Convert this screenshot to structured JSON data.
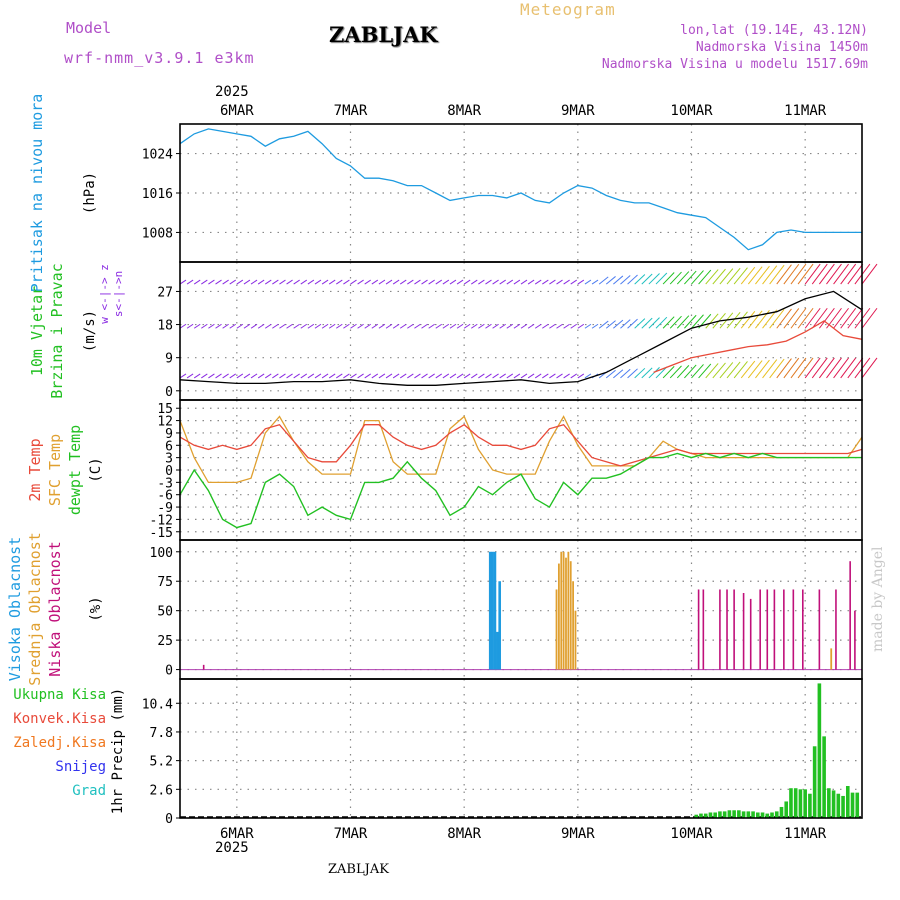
{
  "header": {
    "model_label": "Model",
    "model_name": "wrf-nmm_v3.9.1 e3km",
    "station": "ZABLJAK",
    "product": "Meteogram",
    "coords": "lon,lat (19.14E, 43.12N)",
    "elevation": "Nadmorska Visina 1450m",
    "model_elevation": "Nadmorska Visina u modelu 1517.69m",
    "year": "2025",
    "footer_station": "ZABLJAK",
    "credit": "made by Angel"
  },
  "colors": {
    "pressure": "#1e9be0",
    "wind_green": "#22c022",
    "wind_purple": "#8a2be2",
    "temp2m": "#e84a3a",
    "sfc": "#e0a030",
    "dew": "#22c022",
    "cloud_high": "#1e9be0",
    "cloud_mid": "#e0a030",
    "cloud_low": "#c0107a",
    "precip_total": "#22c022",
    "precip_conv": "#e84a3a",
    "precip_frz": "#f07820",
    "precip_snow": "#3333ee",
    "precip_grad": "#20c0c0",
    "grid": "#888888"
  },
  "chart_data": [
    {
      "type": "line",
      "panel": "pressure",
      "ylabel_a": "Pritisak na nivou mora",
      "ylabel_unit": "(hPa)",
      "yticks": [
        1008,
        1016,
        1024
      ],
      "ylim": [
        1002,
        1030
      ],
      "x": [
        0,
        3,
        6,
        9,
        12,
        15,
        18,
        21,
        24,
        27,
        30,
        33,
        36,
        39,
        42,
        45,
        48,
        51,
        54,
        57,
        60,
        63,
        66,
        69,
        72,
        75,
        78,
        81,
        84,
        87,
        90,
        93,
        96,
        99,
        102,
        105,
        108,
        111,
        114,
        117,
        120,
        123,
        126,
        129,
        132,
        135,
        138,
        141,
        144
      ],
      "values": [
        1026.0,
        1028.0,
        1029.0,
        1028.5,
        1028.0,
        1027.5,
        1025.5,
        1027.0,
        1027.5,
        1028.5,
        1026.0,
        1023.0,
        1021.5,
        1019.0,
        1019.0,
        1018.5,
        1017.5,
        1017.5,
        1016.0,
        1014.5,
        1015.0,
        1015.5,
        1015.5,
        1015.0,
        1016.0,
        1014.5,
        1014.0,
        1016.0,
        1017.5,
        1017.0,
        1015.5,
        1014.5,
        1014.0,
        1014.0,
        1013.0,
        1012.0,
        1011.5,
        1011.0,
        1009.0,
        1007.0,
        1004.5,
        1005.5,
        1008.0,
        1008.5,
        1008.0,
        1008.0,
        1008.0,
        1008.0,
        1008.0
      ]
    },
    {
      "type": "line",
      "panel": "wind",
      "ylabel_a": "10m Vjetar",
      "ylabel_b": "Brzina i Pravac",
      "ylabel_unit": "(m/s)",
      "compass": "w <-|-> z",
      "compass_b": "s<-|->n",
      "yticks": [
        0,
        9,
        18,
        27
      ],
      "ylim": [
        -2.5,
        35
      ],
      "barb_levels": [
        3.5,
        17,
        29
      ],
      "speed_x": [
        0,
        6,
        12,
        18,
        24,
        30,
        36,
        42,
        48,
        54,
        60,
        66,
        72,
        78,
        84,
        90,
        96,
        102,
        108,
        114,
        120,
        126,
        132,
        138,
        144
      ],
      "speed": [
        3.0,
        2.5,
        2.0,
        2.0,
        2.5,
        2.5,
        3.0,
        2.0,
        1.5,
        1.5,
        2.0,
        2.5,
        3.0,
        2.0,
        2.5,
        5.0,
        9.0,
        13.0,
        17.0,
        19.0,
        20.0,
        21.5,
        25.0,
        27.0,
        22.0
      ],
      "gust_x": [
        100,
        104,
        108,
        112,
        116,
        120,
        124,
        128,
        132,
        136,
        140,
        144
      ],
      "gust": [
        5.0,
        7.0,
        9.0,
        10.0,
        11.0,
        12.0,
        12.5,
        13.5,
        16.0,
        19.0,
        15.0,
        14.0
      ]
    },
    {
      "type": "line",
      "panel": "temperature",
      "ylabel_a": "2m Temp",
      "ylabel_b": "SFC Temp",
      "ylabel_c": "dewpt Temp",
      "ylabel_unit": "(C)",
      "yticks": [
        -15,
        -12,
        -9,
        -6,
        -3,
        0,
        3,
        6,
        9,
        12,
        15
      ],
      "ylim": [
        -17,
        17
      ],
      "x": [
        0,
        3,
        6,
        9,
        12,
        15,
        18,
        21,
        24,
        27,
        30,
        33,
        36,
        39,
        42,
        45,
        48,
        51,
        54,
        57,
        60,
        63,
        66,
        69,
        72,
        75,
        78,
        81,
        84,
        87,
        90,
        93,
        96,
        99,
        102,
        105,
        108,
        111,
        114,
        117,
        120,
        123,
        126,
        129,
        132,
        135,
        138,
        141,
        144
      ],
      "temp2m": [
        8,
        6,
        5,
        6,
        5,
        6,
        10,
        11,
        7,
        3,
        2,
        2,
        6,
        11,
        11,
        8,
        6,
        5,
        6,
        9,
        11,
        8,
        6,
        6,
        5,
        6,
        10,
        11,
        7,
        3,
        2,
        1,
        2,
        3,
        4,
        5,
        4,
        4,
        4,
        4,
        4,
        4,
        4,
        4,
        4,
        4,
        4,
        4,
        5
      ],
      "sfc": [
        12,
        3,
        -3,
        -3,
        -3,
        -2,
        9,
        13,
        7,
        2,
        -1,
        -1,
        -1,
        12,
        12,
        2,
        -1,
        -1,
        -1,
        10,
        13,
        5,
        0,
        -1,
        -1,
        -1,
        7,
        13,
        6,
        1,
        1,
        1,
        1,
        3,
        7,
        5,
        4,
        3,
        3,
        3,
        3,
        3,
        3,
        3,
        3,
        3,
        3,
        3,
        8
      ],
      "dew": [
        -6,
        0,
        -5,
        -12,
        -14,
        -13,
        -3,
        -1,
        -4,
        -11,
        -9,
        -11,
        -12,
        -3,
        -3,
        -2,
        2,
        -2,
        -5,
        -11,
        -9,
        -4,
        -6,
        -3,
        -1,
        -7,
        -9,
        -3,
        -6,
        -2,
        -2,
        -1,
        1,
        3,
        3,
        4,
        3,
        4,
        3,
        4,
        3,
        4,
        3,
        3,
        3,
        3,
        3,
        3,
        3
      ]
    },
    {
      "type": "bar",
      "panel": "clouds",
      "ylabel_a": "Visoka Oblacnost",
      "ylabel_b": "Srednja Oblacnost",
      "ylabel_c": "Niska Oblacnost",
      "ylabel_unit": "(%)",
      "yticks": [
        0,
        25,
        50,
        75,
        100
      ],
      "ylim": [
        -8,
        110
      ],
      "series": [
        {
          "name": "Visoka Oblacnost",
          "x": [
            65.5,
            66.0,
            66.5,
            67.0,
            67.5
          ],
          "values": [
            100,
            100,
            100,
            32,
            75
          ]
        },
        {
          "name": "Srednja Oblacnost",
          "x": [
            79.5,
            80.0,
            80.5,
            81.0,
            81.5,
            82.0,
            82.5,
            83.0,
            83.5,
            137.5
          ],
          "values": [
            68,
            90,
            100,
            100,
            95,
            100,
            92,
            75,
            50,
            18
          ]
        },
        {
          "name": "Niska Oblacnost",
          "x": [
            5.0,
            109.5,
            110.5,
            114.0,
            115.5,
            117.0,
            119.0,
            120.5,
            122.5,
            124.0,
            125.5,
            127.5,
            129.5,
            131.5,
            135.0,
            138.5,
            141.5,
            142.5
          ],
          "values": [
            4,
            68,
            68,
            68,
            68,
            68,
            65,
            60,
            68,
            68,
            68,
            68,
            68,
            68,
            68,
            68,
            92,
            50
          ]
        }
      ]
    },
    {
      "type": "bar",
      "panel": "precipitation",
      "ylabel_a": "1hr Precip",
      "ylabel_unit": "(mm)",
      "legend": [
        "Ukupna Kisa",
        "Konvek.Kisa",
        "Zaledj.Kisa",
        "Snijeg",
        "Grad"
      ],
      "yticks": [
        0,
        2.6,
        5.2,
        7.8,
        10.4
      ],
      "ylim": [
        0,
        12.6
      ],
      "x": [
        109,
        110,
        111,
        112,
        113,
        114,
        115,
        116,
        117,
        118,
        119,
        120,
        121,
        122,
        123,
        124,
        125,
        126,
        127,
        128,
        129,
        130,
        131,
        132,
        133,
        134,
        135,
        136,
        137,
        138,
        139,
        140,
        141,
        142,
        143
      ],
      "values": [
        0.3,
        0.4,
        0.4,
        0.5,
        0.5,
        0.6,
        0.6,
        0.7,
        0.7,
        0.7,
        0.6,
        0.6,
        0.6,
        0.5,
        0.5,
        0.4,
        0.5,
        0.6,
        1.0,
        1.5,
        2.7,
        2.7,
        2.6,
        2.6,
        2.2,
        6.5,
        12.2,
        7.4,
        2.7,
        2.5,
        2.2,
        2.0,
        2.9,
        2.3,
        2.3
      ]
    }
  ],
  "xaxis": {
    "labels": [
      "6MAR",
      "7MAR",
      "8MAR",
      "9MAR",
      "10MAR",
      "11MAR"
    ],
    "day_hours": [
      12,
      36,
      60,
      84,
      108,
      132
    ]
  }
}
